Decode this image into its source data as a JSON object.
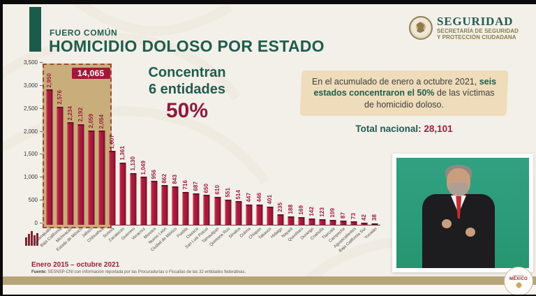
{
  "header": {
    "kicker": "FUERO COMÚN",
    "title": "HOMICIDIO DOLOSO POR ESTADO",
    "logo": {
      "brand": "SEGURIDAD",
      "sub_line1": "SECRETARÍA DE SEGURIDAD",
      "sub_line2": "Y PROTECCIÓN CIUDADANA"
    }
  },
  "highlight": {
    "line1": "Concentran",
    "line2": "6 entidades",
    "percent": "50%",
    "sum_badge": "14,065"
  },
  "infobox": {
    "text_pre": "En el acumulado de enero a octubre 2021, ",
    "text_bold": "seis estados concentraron el 50%",
    "text_post": " de las víctimas de homicidio doloso.",
    "total_label": "Total nacional:",
    "total_value": "28,101"
  },
  "chart_data": {
    "type": "bar",
    "title": "HOMICIDIO DOLOSO POR ESTADO",
    "categories": [
      "Guanajuato",
      "Baja California",
      "Michoacán",
      "Estado de México",
      "Jalisco",
      "Chihuahua",
      "Sonora",
      "Zacatecas",
      "Guerrero",
      "Veracruz",
      "Morelos",
      "Nuevo León",
      "Ciudad de México",
      "Puebla",
      "Oaxaca",
      "San Luis Potosí",
      "Tamaulipas",
      "Quintana Roo",
      "Sinaloa",
      "Colima",
      "Chiapas",
      "Tabasco",
      "Hidalgo",
      "Nayarit",
      "Querétaro",
      "Durango",
      "Coahuila",
      "Tlaxcala",
      "Campeche",
      "Aguascalientes",
      "Baja California Sur",
      "Yucatán"
    ],
    "values": [
      2950,
      2576,
      2234,
      2192,
      2059,
      2054,
      1607,
      1361,
      1130,
      1049,
      956,
      862,
      843,
      716,
      687,
      650,
      610,
      551,
      514,
      447,
      446,
      401,
      235,
      188,
      169,
      142,
      123,
      109,
      87,
      73,
      42,
      38
    ],
    "ylim": [
      0,
      3500
    ],
    "yticks": [
      0,
      500,
      1000,
      1500,
      2000,
      2500,
      3000,
      3500
    ],
    "highlight_first_n": 6,
    "highlight_sum": 14065,
    "total_national": 28101,
    "bar_color": "#a31b3c",
    "highlight_box_color": "#c9ad7b",
    "grid": false,
    "legend": "none"
  },
  "footer": {
    "period": "Enero 2015 – octubre 2021",
    "source_label": "Fuente:",
    "source_text": " SESNSP-CNI con información reportada por las Procuradurías o Fiscalías de las 32 entidades federativas."
  },
  "badge_mexico": {
    "name": "MÉXICO"
  },
  "colors": {
    "green": "#1f5c4d",
    "maroon": "#9c1c3c",
    "tan_box": "#eedcba",
    "gold_band": "#b5a478",
    "background": "#f3f0e9",
    "chroma_green": "#2a9a78"
  }
}
